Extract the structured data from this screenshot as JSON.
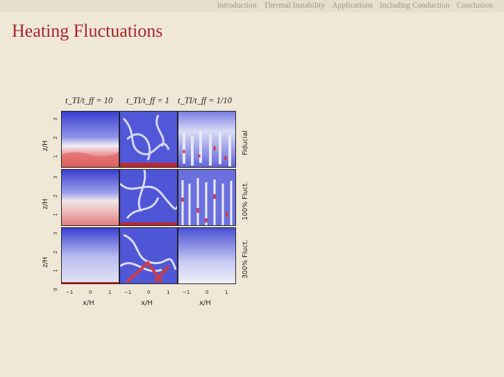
{
  "nav": {
    "items": [
      "Introduction",
      "Thermal Instability",
      "Applications",
      "Including Conduction",
      "Conclusion"
    ]
  },
  "slide": {
    "title": "Heating Fluctuations"
  },
  "figure": {
    "column_headers": [
      "t_TI/t_ff = 10",
      "t_TI/t_ff = 1",
      "t_TI/t_ff = 1/10"
    ],
    "row_labels": [
      "Fiducial",
      "100% Fluct.",
      "300% Fluct."
    ],
    "ylabel": "z/H",
    "xlabel": "x/H",
    "yticks": [
      "0",
      "1",
      "2",
      "3"
    ],
    "xticks": [
      "−1",
      "0",
      "1"
    ],
    "colors": {
      "cold": "#c0272d",
      "mid": "#f0eef5",
      "hot": "#3a3fd0"
    }
  }
}
